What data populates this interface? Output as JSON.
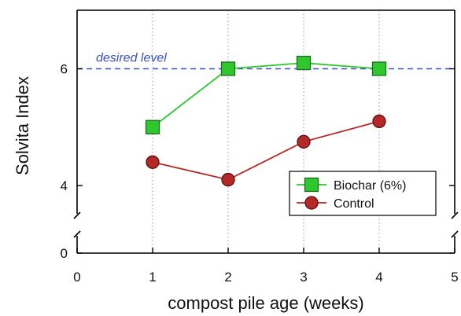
{
  "chart_data": {
    "type": "line",
    "xlabel": "compost pile age (weeks)",
    "ylabel": "Solvita Index",
    "xlim": [
      0,
      5
    ],
    "x_ticks": [
      "0",
      "1",
      "2",
      "3",
      "4",
      "5"
    ],
    "y_ticks": [
      "0",
      "4",
      "6"
    ],
    "y_axis_break": "between 0 and 4",
    "ylim_upper": [
      3.3,
      7.0
    ],
    "grid": "vertical dotted lines at x ticks",
    "legend_placement": "bottom-right",
    "reference_line": {
      "value": 6,
      "label": "desired level",
      "style": "dashed",
      "color": "#3a50c8"
    },
    "series": [
      {
        "name": "Biochar (6%)",
        "x": [
          1,
          2,
          3,
          4
        ],
        "values": [
          5.0,
          6.0,
          6.1,
          6.0
        ],
        "color": "#2ec72e",
        "marker": "square"
      },
      {
        "name": "Control",
        "x": [
          1,
          2,
          3,
          4
        ],
        "values": [
          4.4,
          4.1,
          4.75,
          5.1
        ],
        "color": "#b42828",
        "marker": "circle"
      }
    ]
  }
}
